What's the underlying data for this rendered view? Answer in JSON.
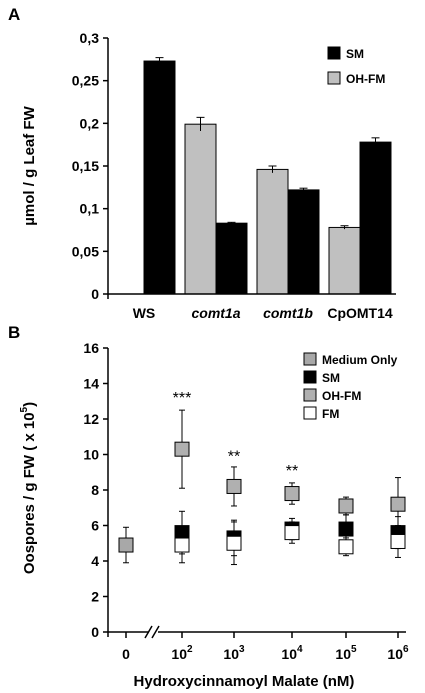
{
  "chart_data": [
    {
      "panel": "A",
      "type": "bar",
      "ylabel": "µmol / g Leaf FW",
      "ylim": [
        0,
        0.3
      ],
      "yticks": [
        "0",
        "0,05",
        "0,1",
        "0,15",
        "0,2",
        "0,25",
        "0,3"
      ],
      "categories": [
        {
          "label": "WS",
          "italic": false
        },
        {
          "label": "comt1a",
          "italic": true
        },
        {
          "label": "comt1b",
          "italic": true
        },
        {
          "label": "CpOMT14",
          "italic": false
        }
      ],
      "series": [
        {
          "name": "OH-FM",
          "color": "#c0c0c0",
          "values": [
            null,
            0.199,
            0.146,
            0.078
          ],
          "errors": [
            null,
            0.008,
            0.004,
            0.002
          ]
        },
        {
          "name": "SM",
          "color": "#000000",
          "values": [
            0.273,
            0.083,
            0.122,
            0.178
          ],
          "errors": [
            0.004,
            0.001,
            0.002,
            0.005
          ]
        }
      ],
      "legend": {
        "position": "top-right",
        "entries": [
          "SM",
          "OH-FM"
        ]
      }
    },
    {
      "panel": "B",
      "type": "scatter",
      "xlabel": "Hydroxycinnamoyl Malate (nM)",
      "ylabel_main": "Oospores / g FW ( x 10",
      "ylabel_sup": "5",
      "ylabel_end": ")",
      "ylim": [
        0,
        16
      ],
      "yticks": [
        "0",
        "2",
        "4",
        "6",
        "8",
        "10",
        "12",
        "14",
        "16"
      ],
      "xticks": [
        {
          "base": "0",
          "exp": ""
        },
        {
          "base": "10",
          "exp": "2"
        },
        {
          "base": "10",
          "exp": "3"
        },
        {
          "base": "10",
          "exp": "4"
        },
        {
          "base": "10",
          "exp": "5"
        },
        {
          "base": "10",
          "exp": "6"
        }
      ],
      "axis_break": true,
      "series": [
        {
          "name": "Medium Only",
          "fill": "#a8a8a8",
          "points": [
            {
              "x": 0,
              "y": 4.9,
              "err": 1.0
            }
          ]
        },
        {
          "name": "SM",
          "fill": "#000000",
          "points": [
            {
              "x": 1,
              "y": 5.6,
              "err": 1.2
            },
            {
              "x": 2,
              "y": 5.3,
              "err": 1.0
            },
            {
              "x": 3,
              "y": 5.8,
              "err": 0.6
            },
            {
              "x": 4,
              "y": 5.8,
              "err": 0.8
            },
            {
              "x": 5,
              "y": 5.6,
              "err": 0.9
            }
          ]
        },
        {
          "name": "OH-FM",
          "fill": "#b0b0b0",
          "points": [
            {
              "x": 1,
              "y": 10.3,
              "err": 2.2
            },
            {
              "x": 2,
              "y": 8.2,
              "err": 1.1
            },
            {
              "x": 3,
              "y": 7.8,
              "err": 0.6
            },
            {
              "x": 4,
              "y": 7.1,
              "err": 0.5
            },
            {
              "x": 5,
              "y": 7.2,
              "err": 1.5
            }
          ]
        },
        {
          "name": "FM",
          "fill": "#ffffff",
          "points": [
            {
              "x": 1,
              "y": 4.9,
              "err": 1.0
            },
            {
              "x": 2,
              "y": 5.0,
              "err": 1.2
            },
            {
              "x": 3,
              "y": 5.6,
              "err": 0.6
            },
            {
              "x": 4,
              "y": 4.8,
              "err": 0.5
            },
            {
              "x": 5,
              "y": 5.1,
              "err": 0.9
            }
          ]
        }
      ],
      "annotations": [
        {
          "text": "***",
          "x": 1,
          "y": 12.9
        },
        {
          "text": "**",
          "x": 2,
          "y": 9.6
        },
        {
          "text": "**",
          "x": 3,
          "y": 8.8
        }
      ],
      "legend": {
        "position": "top-right",
        "entries": [
          "Medium Only",
          "SM",
          "OH-FM",
          "FM"
        ]
      }
    }
  ]
}
